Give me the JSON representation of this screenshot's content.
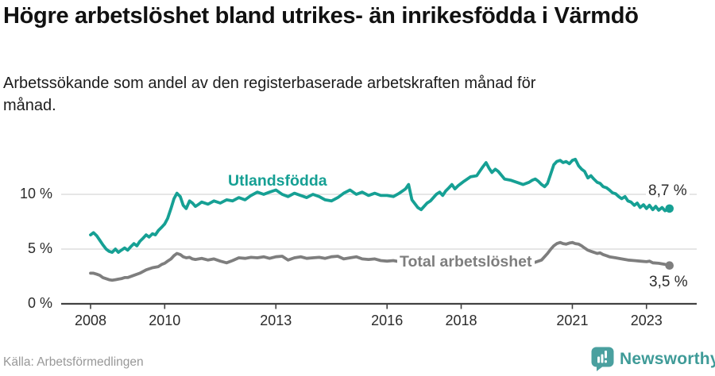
{
  "header": {
    "title": "Högre arbetslöshet bland utrikes- än inrikesfödda i Värmdö",
    "subtitle": "Arbetssökande som andel av den registerbaserade arbetskraften månad för månad."
  },
  "footer": {
    "source": "Källa: Arbetsförmedlingen",
    "brand": "Newsworthy"
  },
  "colors": {
    "foreign_born_line": "#16A094",
    "total_line": "#7e7e7e",
    "gridline": "#d8d8d8",
    "axis": "#424242",
    "brand_teal": "#4AA09F"
  },
  "chart_data": {
    "type": "line",
    "title": "Högre arbetslöshet bland utrikes- än inrikesfödda i Värmdö",
    "xlabel": "",
    "ylabel": "",
    "xlim": [
      2007.7,
      2023.95
    ],
    "ylim": [
      0,
      14
    ],
    "grid": "horizontal",
    "x_ticks": [
      2008,
      2010,
      2013,
      2016,
      2018,
      2021,
      2023
    ],
    "y_ticks": [
      {
        "value": 0,
        "label": "0 %"
      },
      {
        "value": 5,
        "label": "5 %"
      },
      {
        "value": 10,
        "label": "10 %"
      }
    ],
    "series": [
      {
        "name": "Utlandsfödda",
        "color": "#16A094",
        "end_label": "8,7 %",
        "end_value": 8.7,
        "points": [
          [
            2008.0,
            6.3
          ],
          [
            2008.08,
            6.5
          ],
          [
            2008.17,
            6.2
          ],
          [
            2008.25,
            5.8
          ],
          [
            2008.33,
            5.4
          ],
          [
            2008.42,
            5.0
          ],
          [
            2008.5,
            4.8
          ],
          [
            2008.58,
            4.7
          ],
          [
            2008.67,
            5.0
          ],
          [
            2008.75,
            4.7
          ],
          [
            2008.83,
            4.9
          ],
          [
            2008.92,
            5.1
          ],
          [
            2009.0,
            4.9
          ],
          [
            2009.08,
            5.2
          ],
          [
            2009.17,
            5.5
          ],
          [
            2009.25,
            5.3
          ],
          [
            2009.33,
            5.7
          ],
          [
            2009.42,
            6.0
          ],
          [
            2009.5,
            6.3
          ],
          [
            2009.58,
            6.1
          ],
          [
            2009.67,
            6.4
          ],
          [
            2009.75,
            6.3
          ],
          [
            2009.83,
            6.7
          ],
          [
            2009.92,
            7.0
          ],
          [
            2010.0,
            7.3
          ],
          [
            2010.08,
            7.8
          ],
          [
            2010.17,
            8.7
          ],
          [
            2010.25,
            9.6
          ],
          [
            2010.33,
            10.1
          ],
          [
            2010.42,
            9.8
          ],
          [
            2010.5,
            9.0
          ],
          [
            2010.58,
            8.7
          ],
          [
            2010.67,
            9.4
          ],
          [
            2010.75,
            9.2
          ],
          [
            2010.83,
            8.9
          ],
          [
            2010.92,
            9.1
          ],
          [
            2011.0,
            9.3
          ],
          [
            2011.17,
            9.1
          ],
          [
            2011.33,
            9.4
          ],
          [
            2011.5,
            9.2
          ],
          [
            2011.67,
            9.5
          ],
          [
            2011.83,
            9.4
          ],
          [
            2012.0,
            9.7
          ],
          [
            2012.17,
            9.5
          ],
          [
            2012.33,
            9.9
          ],
          [
            2012.5,
            10.2
          ],
          [
            2012.67,
            10.0
          ],
          [
            2012.83,
            10.2
          ],
          [
            2013.0,
            10.4
          ],
          [
            2013.17,
            10.0
          ],
          [
            2013.33,
            9.8
          ],
          [
            2013.5,
            10.1
          ],
          [
            2013.67,
            9.9
          ],
          [
            2013.83,
            9.7
          ],
          [
            2014.0,
            10.0
          ],
          [
            2014.17,
            9.8
          ],
          [
            2014.33,
            9.5
          ],
          [
            2014.5,
            9.4
          ],
          [
            2014.67,
            9.7
          ],
          [
            2014.83,
            10.1
          ],
          [
            2015.0,
            10.4
          ],
          [
            2015.17,
            10.0
          ],
          [
            2015.33,
            10.2
          ],
          [
            2015.5,
            9.9
          ],
          [
            2015.67,
            10.1
          ],
          [
            2015.83,
            9.9
          ],
          [
            2016.0,
            9.9
          ],
          [
            2016.17,
            9.8
          ],
          [
            2016.33,
            10.1
          ],
          [
            2016.5,
            10.5
          ],
          [
            2016.58,
            10.9
          ],
          [
            2016.67,
            9.5
          ],
          [
            2016.83,
            8.8
          ],
          [
            2016.92,
            8.6
          ],
          [
            2017.0,
            8.9
          ],
          [
            2017.08,
            9.2
          ],
          [
            2017.17,
            9.4
          ],
          [
            2017.33,
            10.0
          ],
          [
            2017.42,
            10.2
          ],
          [
            2017.5,
            9.9
          ],
          [
            2017.58,
            10.3
          ],
          [
            2017.67,
            10.6
          ],
          [
            2017.75,
            10.9
          ],
          [
            2017.83,
            10.5
          ],
          [
            2017.92,
            10.8
          ],
          [
            2018.0,
            11.0
          ],
          [
            2018.08,
            11.2
          ],
          [
            2018.25,
            11.6
          ],
          [
            2018.42,
            11.7
          ],
          [
            2018.5,
            12.1
          ],
          [
            2018.58,
            12.5
          ],
          [
            2018.67,
            12.9
          ],
          [
            2018.75,
            12.4
          ],
          [
            2018.83,
            12.0
          ],
          [
            2018.92,
            12.3
          ],
          [
            2019.0,
            12.1
          ],
          [
            2019.17,
            11.4
          ],
          [
            2019.33,
            11.3
          ],
          [
            2019.5,
            11.1
          ],
          [
            2019.67,
            10.9
          ],
          [
            2019.83,
            11.1
          ],
          [
            2019.92,
            11.3
          ],
          [
            2020.0,
            11.4
          ],
          [
            2020.08,
            11.2
          ],
          [
            2020.17,
            10.9
          ],
          [
            2020.25,
            10.7
          ],
          [
            2020.33,
            11.0
          ],
          [
            2020.42,
            11.9
          ],
          [
            2020.5,
            12.7
          ],
          [
            2020.58,
            13.0
          ],
          [
            2020.67,
            13.1
          ],
          [
            2020.75,
            12.9
          ],
          [
            2020.83,
            13.0
          ],
          [
            2020.92,
            12.8
          ],
          [
            2021.0,
            13.1
          ],
          [
            2021.08,
            13.2
          ],
          [
            2021.17,
            12.6
          ],
          [
            2021.25,
            12.3
          ],
          [
            2021.33,
            12.1
          ],
          [
            2021.42,
            11.5
          ],
          [
            2021.5,
            11.7
          ],
          [
            2021.58,
            11.4
          ],
          [
            2021.67,
            11.1
          ],
          [
            2021.75,
            11.0
          ],
          [
            2021.83,
            10.7
          ],
          [
            2021.92,
            10.6
          ],
          [
            2022.0,
            10.4
          ],
          [
            2022.08,
            10.15
          ],
          [
            2022.17,
            10.05
          ],
          [
            2022.25,
            9.8
          ],
          [
            2022.33,
            9.6
          ],
          [
            2022.42,
            9.8
          ],
          [
            2022.5,
            9.4
          ],
          [
            2022.58,
            9.3
          ],
          [
            2022.67,
            9.0
          ],
          [
            2022.75,
            9.2
          ],
          [
            2022.83,
            8.8
          ],
          [
            2022.92,
            9.05
          ],
          [
            2023.0,
            8.7
          ],
          [
            2023.08,
            9.0
          ],
          [
            2023.17,
            8.6
          ],
          [
            2023.25,
            8.9
          ],
          [
            2023.33,
            8.55
          ],
          [
            2023.42,
            8.8
          ],
          [
            2023.5,
            8.5
          ],
          [
            2023.62,
            8.7
          ]
        ]
      },
      {
        "name": "Total arbetslöshet",
        "color": "#7e7e7e",
        "end_label": "3,5 %",
        "end_value": 3.5,
        "points": [
          [
            2008.0,
            2.8
          ],
          [
            2008.08,
            2.8
          ],
          [
            2008.17,
            2.7
          ],
          [
            2008.25,
            2.6
          ],
          [
            2008.33,
            2.4
          ],
          [
            2008.42,
            2.3
          ],
          [
            2008.5,
            2.2
          ],
          [
            2008.58,
            2.15
          ],
          [
            2008.67,
            2.2
          ],
          [
            2008.75,
            2.25
          ],
          [
            2008.83,
            2.3
          ],
          [
            2008.92,
            2.4
          ],
          [
            2009.0,
            2.4
          ],
          [
            2009.17,
            2.6
          ],
          [
            2009.33,
            2.8
          ],
          [
            2009.5,
            3.1
          ],
          [
            2009.67,
            3.3
          ],
          [
            2009.83,
            3.4
          ],
          [
            2009.92,
            3.6
          ],
          [
            2010.0,
            3.7
          ],
          [
            2010.08,
            3.9
          ],
          [
            2010.17,
            4.1
          ],
          [
            2010.25,
            4.4
          ],
          [
            2010.33,
            4.6
          ],
          [
            2010.42,
            4.5
          ],
          [
            2010.5,
            4.3
          ],
          [
            2010.58,
            4.2
          ],
          [
            2010.67,
            4.25
          ],
          [
            2010.75,
            4.1
          ],
          [
            2010.83,
            4.05
          ],
          [
            2010.92,
            4.1
          ],
          [
            2011.0,
            4.15
          ],
          [
            2011.17,
            4.0
          ],
          [
            2011.33,
            4.1
          ],
          [
            2011.5,
            3.9
          ],
          [
            2011.67,
            3.75
          ],
          [
            2011.83,
            3.95
          ],
          [
            2012.0,
            4.2
          ],
          [
            2012.17,
            4.15
          ],
          [
            2012.33,
            4.25
          ],
          [
            2012.5,
            4.2
          ],
          [
            2012.67,
            4.3
          ],
          [
            2012.83,
            4.15
          ],
          [
            2013.0,
            4.3
          ],
          [
            2013.17,
            4.35
          ],
          [
            2013.33,
            4.0
          ],
          [
            2013.5,
            4.2
          ],
          [
            2013.67,
            4.3
          ],
          [
            2013.83,
            4.15
          ],
          [
            2014.0,
            4.2
          ],
          [
            2014.17,
            4.25
          ],
          [
            2014.33,
            4.15
          ],
          [
            2014.5,
            4.3
          ],
          [
            2014.67,
            4.35
          ],
          [
            2014.83,
            4.1
          ],
          [
            2015.0,
            4.2
          ],
          [
            2015.17,
            4.3
          ],
          [
            2015.33,
            4.1
          ],
          [
            2015.5,
            4.05
          ],
          [
            2015.67,
            4.1
          ],
          [
            2015.83,
            3.95
          ],
          [
            2016.0,
            3.9
          ],
          [
            2016.17,
            3.95
          ],
          [
            2016.33,
            3.85
          ],
          [
            2016.5,
            3.8
          ],
          [
            2016.67,
            3.7
          ],
          [
            2016.83,
            3.65
          ],
          [
            2017.0,
            3.6
          ],
          [
            2017.25,
            3.6
          ],
          [
            2017.5,
            3.5
          ],
          [
            2017.75,
            3.5
          ],
          [
            2018.0,
            3.45
          ],
          [
            2018.25,
            3.4
          ],
          [
            2018.5,
            3.4
          ],
          [
            2018.75,
            3.5
          ],
          [
            2019.0,
            3.5
          ],
          [
            2019.25,
            3.55
          ],
          [
            2019.5,
            3.6
          ],
          [
            2019.75,
            3.7
          ],
          [
            2020.0,
            3.8
          ],
          [
            2020.17,
            4.0
          ],
          [
            2020.33,
            4.6
          ],
          [
            2020.42,
            5.0
          ],
          [
            2020.5,
            5.3
          ],
          [
            2020.58,
            5.5
          ],
          [
            2020.67,
            5.6
          ],
          [
            2020.75,
            5.5
          ],
          [
            2020.83,
            5.45
          ],
          [
            2020.92,
            5.55
          ],
          [
            2021.0,
            5.6
          ],
          [
            2021.08,
            5.5
          ],
          [
            2021.17,
            5.45
          ],
          [
            2021.25,
            5.3
          ],
          [
            2021.33,
            5.1
          ],
          [
            2021.42,
            4.9
          ],
          [
            2021.5,
            4.8
          ],
          [
            2021.58,
            4.7
          ],
          [
            2021.67,
            4.6
          ],
          [
            2021.75,
            4.65
          ],
          [
            2021.83,
            4.5
          ],
          [
            2021.92,
            4.4
          ],
          [
            2022.0,
            4.3
          ],
          [
            2022.17,
            4.2
          ],
          [
            2022.33,
            4.1
          ],
          [
            2022.5,
            4.0
          ],
          [
            2022.67,
            3.95
          ],
          [
            2022.83,
            3.9
          ],
          [
            2023.0,
            3.85
          ],
          [
            2023.08,
            3.9
          ],
          [
            2023.17,
            3.75
          ],
          [
            2023.33,
            3.7
          ],
          [
            2023.42,
            3.65
          ],
          [
            2023.5,
            3.6
          ],
          [
            2023.62,
            3.5
          ]
        ]
      }
    ]
  }
}
